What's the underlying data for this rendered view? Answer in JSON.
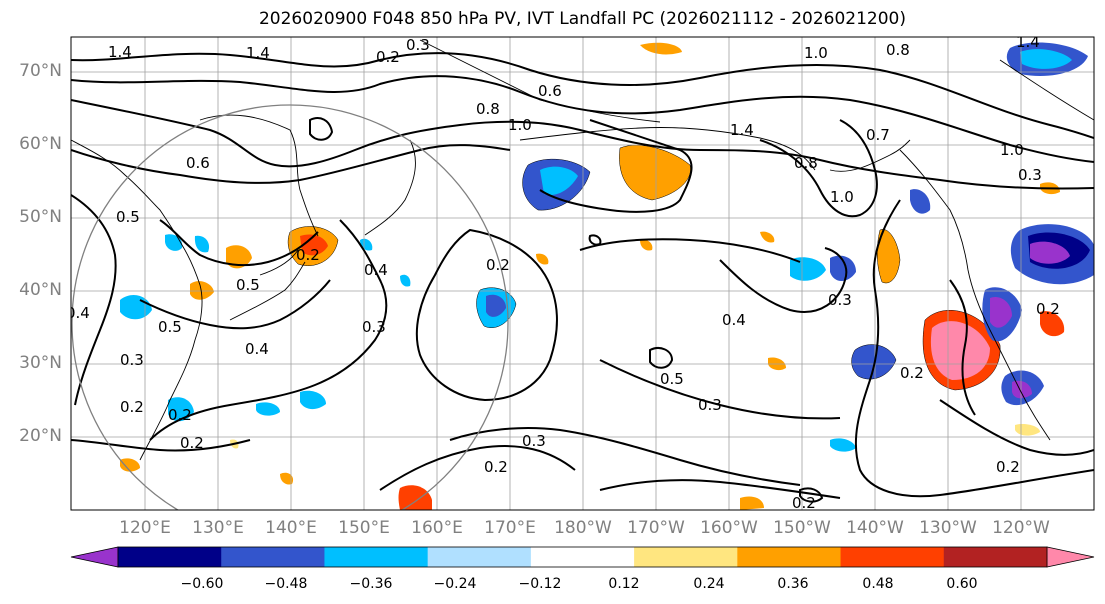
{
  "title": "2026020900 F048 850 hPa PV, IVT Landfall PC (2026021112 - 2026021200)",
  "map": {
    "lat_labels": [
      "70°N",
      "60°N",
      "50°N",
      "40°N",
      "30°N",
      "20°N"
    ],
    "lon_labels": [
      "120°E",
      "130°E",
      "140°E",
      "150°E",
      "160°E",
      "170°E",
      "180°W",
      "170°W",
      "160°W",
      "150°W",
      "140°W",
      "130°W",
      "120°W"
    ],
    "contour_labels": [
      "1.4",
      "1.4",
      "0.3",
      "0.2",
      "0.6",
      "0.8",
      "1.0",
      "1.4",
      "1.0",
      "0.8",
      "1.4",
      "0.7",
      "1.0",
      "0.3",
      "0.6",
      "0.5",
      "0.2",
      "0.5",
      "0.5",
      "0.4",
      "0.4",
      "0.3",
      "0.4",
      "0.3",
      "0.2",
      "0.2",
      "0.2",
      "0.3",
      "0.2",
      "0.4",
      "0.3",
      "0.5",
      "0.3",
      "0.2",
      "0.2",
      "0.2",
      "0.2",
      "0.2",
      "0.8",
      "1.0"
    ]
  },
  "colorbar": {
    "colors": [
      "#9933cc",
      "#000088",
      "#3355cc",
      "#00bfff",
      "#b0e0ff",
      "#ffffff",
      "#ffe680",
      "#ffa000",
      "#ff4000",
      "#b22222",
      "#ff88aa"
    ],
    "tick_labels": [
      "−0.60",
      "−0.48",
      "−0.36",
      "−0.24",
      "−0.12",
      "0.12",
      "0.24",
      "0.36",
      "0.48",
      "0.60"
    ]
  }
}
